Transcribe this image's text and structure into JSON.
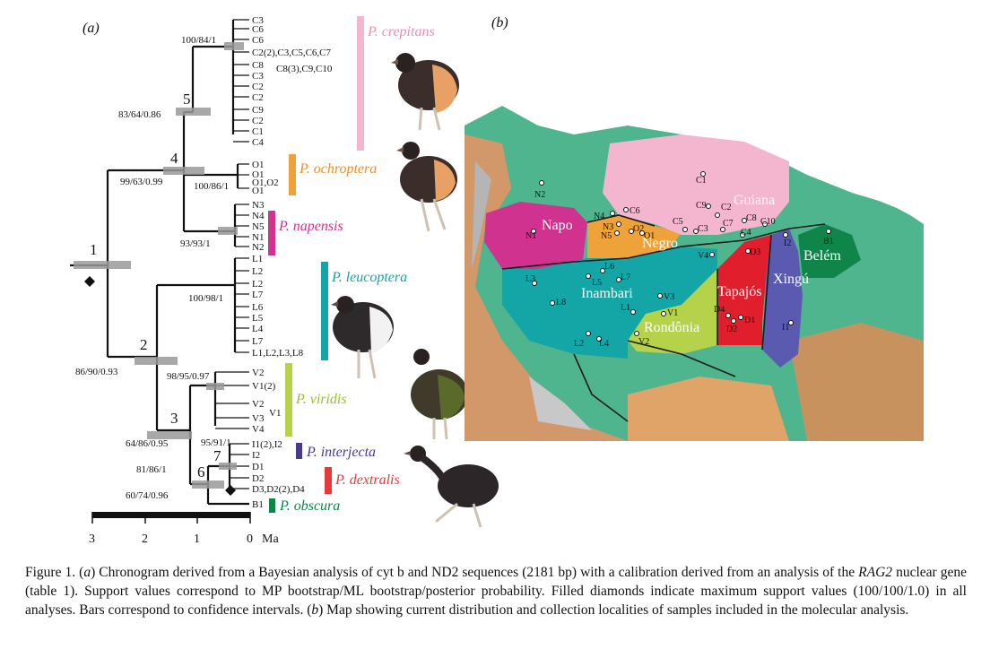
{
  "panel_a": "(a)",
  "panel_b": "(b)",
  "nodes": [
    "1",
    "2",
    "3",
    "4",
    "5",
    "6",
    "7"
  ],
  "supports": {
    "s5": "100/84/1",
    "s4": "83/64/0.86",
    "s_root_a": "99/63/0.99",
    "s_ochro": "100/86/1",
    "s_napo": "93/93/1",
    "s_leuco": "100/98/1",
    "s_2": "86/90/0.93",
    "s_vir": "98/95/0.97",
    "s_3": "64/86/0.95",
    "s_int": "95/91/1",
    "s_7": "81/86/1",
    "s_6": "60/74/0.96"
  },
  "tips": {
    "crepitans": [
      "C3",
      "C6",
      "C6",
      "C2(2),C3,C5,C6,C7",
      "C8(3),C9,C10",
      "C8",
      "C3",
      "C2",
      "C2",
      "C9",
      "C2",
      "C1",
      "C4"
    ],
    "ochroptera": [
      "O1",
      "O1",
      "O1,O2",
      "O1"
    ],
    "napensis": [
      "N3",
      "N4",
      "N5",
      "N1",
      "N2"
    ],
    "leucoptera": [
      "L1",
      "L2",
      "L2",
      "L7",
      "L6",
      "L5",
      "L4",
      "L7",
      "L1,L2,L3,L8"
    ],
    "viridis": [
      "V2",
      "V1(2)",
      "V2",
      "V3",
      "V1",
      "V4"
    ],
    "interjecta": [
      "I1(2),I2",
      "I2"
    ],
    "dextralis": [
      "D1",
      "D2",
      "D3,D2(2),D4"
    ],
    "obscura": [
      "B1"
    ]
  },
  "clades": {
    "crepitans": "P. crepitans",
    "ochroptera": "P. ochroptera",
    "napensis": "P. napensis",
    "leucoptera": "P. leucoptera",
    "viridis": "P. viridis",
    "interjecta": "P. interjecta",
    "dextralis": "P. dextralis",
    "obscura": "P. obscura"
  },
  "colors": {
    "crepitans": "#f4b6cf",
    "ochroptera": "#f0a23a",
    "napensis": "#d0338f",
    "leucoptera": "#14a6a6",
    "viridis": "#b6d24a",
    "interjecta": "#4a3a8c",
    "dextralis": "#e8393a",
    "obscura": "#10854a"
  },
  "scale": {
    "ticks": [
      "3",
      "2",
      "1",
      "0"
    ],
    "unit": "Ma"
  },
  "map_regions": {
    "napo": "Napo",
    "negro": "Negro",
    "guiana": "Guiana",
    "inambari": "Inambari",
    "rondonia": "Rondônia",
    "tapajos": "Tapajós",
    "xingu": "Xingú",
    "belem": "Belém"
  },
  "map_localities": [
    "N2",
    "N1",
    "N4",
    "N3",
    "N5",
    "O2",
    "O1",
    "C6",
    "C5",
    "C9",
    "C2",
    "C3",
    "C1",
    "C7",
    "C8",
    "C4",
    "C10",
    "I2",
    "B1",
    "L6",
    "L7",
    "L5",
    "L3",
    "L8",
    "L1",
    "L2",
    "L4",
    "V3",
    "V1",
    "V2",
    "V4",
    "D3",
    "D4",
    "D1",
    "D2",
    "I1"
  ],
  "caption": {
    "p1": "Figure 1. (",
    "a": "a",
    "p2": ") Chronogram derived from a Bayesian analysis of cyt b and ND2 sequences (2181 bp) with a calibration derived from an analysis of the ",
    "gene": "RAG2",
    "p3": " nuclear gene (table 1). Support values correspond to MP bootstrap/ML bootstrap/posterior probability. Filled diamonds indicate maximum support values (100/100/1.0) in all analyses. Bars correspond to confidence intervals. (",
    "b": "b",
    "p4": ") Map showing current distribution and collection localities of samples included in the molecular analysis."
  }
}
